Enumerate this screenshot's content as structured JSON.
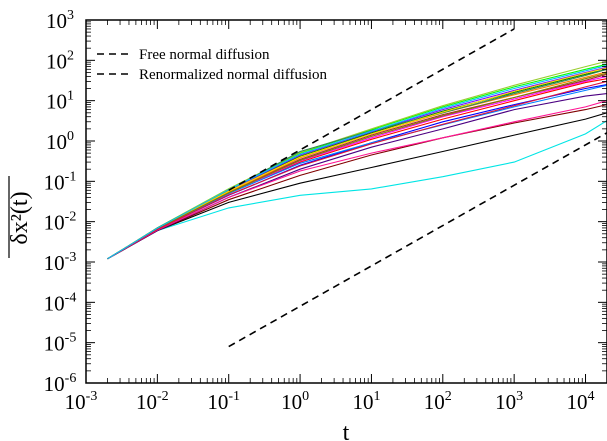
{
  "chart_data": {
    "type": "line",
    "xscale": "log",
    "yscale": "log",
    "xlim": [
      0.001,
      20000
    ],
    "ylim": [
      1e-06,
      1000
    ],
    "xlabel": "t",
    "ylabel": "δx²(t)",
    "x_ticks": [
      {
        "base": "10",
        "exp": "-3",
        "value": 0.001
      },
      {
        "base": "10",
        "exp": "-2",
        "value": 0.01
      },
      {
        "base": "10",
        "exp": "-1",
        "value": 0.1
      },
      {
        "base": "10",
        "exp": "0",
        "value": 1
      },
      {
        "base": "10",
        "exp": "1",
        "value": 10
      },
      {
        "base": "10",
        "exp": "2",
        "value": 100
      },
      {
        "base": "10",
        "exp": "3",
        "value": 1000
      },
      {
        "base": "10",
        "exp": "4",
        "value": 10000
      }
    ],
    "y_ticks": [
      {
        "base": "10",
        "exp": "-6",
        "value": 1e-06
      },
      {
        "base": "10",
        "exp": "-5",
        "value": 1e-05
      },
      {
        "base": "10",
        "exp": "-4",
        "value": 0.0001
      },
      {
        "base": "10",
        "exp": "-3",
        "value": 0.001
      },
      {
        "base": "10",
        "exp": "-2",
        "value": 0.01
      },
      {
        "base": "10",
        "exp": "-1",
        "value": 0.1
      },
      {
        "base": "10",
        "exp": "0",
        "value": 1
      },
      {
        "base": "10",
        "exp": "1",
        "value": 10
      },
      {
        "base": "10",
        "exp": "2",
        "value": 100
      },
      {
        "base": "10",
        "exp": "3",
        "value": 1000
      }
    ],
    "legend_position": "top-left",
    "reference_lines": [
      {
        "name": "Free normal diffusion",
        "style": "dashed",
        "color": "#000000",
        "x": [
          0.1,
          1000
        ],
        "y": [
          0.06,
          600
        ]
      },
      {
        "name": "Renormalized normal diffusion",
        "style": "dashed",
        "color": "#000000",
        "x": [
          0.1,
          20000
        ],
        "y": [
          8e-06,
          1.6
        ]
      }
    ],
    "series_colors": [
      "#000000",
      "#ff0000",
      "#00ff00",
      "#0000ff",
      "#ff00ff",
      "#00cccc",
      "#ff8000",
      "#8000ff",
      "#008000",
      "#a52a2a",
      "#ff1493",
      "#4b0082",
      "#9acd32",
      "#0080ff",
      "#800000",
      "#ffd700",
      "#808000",
      "#2e8b57",
      "#dc143c",
      "#00bfff"
    ],
    "series": [
      {
        "color": "#00e5e5",
        "x": [
          0.002,
          0.01,
          0.1,
          1,
          10,
          100,
          1000,
          10000,
          20000
        ],
        "y": [
          0.0012,
          0.006,
          0.022,
          0.045,
          0.065,
          0.13,
          0.3,
          1.5,
          3.2
        ]
      },
      {
        "color": "#000000",
        "x": [
          0.002,
          0.01,
          0.1,
          1,
          10,
          100,
          1000,
          10000,
          20000
        ],
        "y": [
          0.0012,
          0.006,
          0.03,
          0.09,
          0.22,
          0.55,
          1.4,
          3.5,
          5
        ]
      },
      {
        "color": "#800000",
        "x": [
          0.002,
          0.01,
          0.1,
          1,
          10,
          100,
          1000,
          10000,
          20000
        ],
        "y": [
          0.0012,
          0.006,
          0.035,
          0.14,
          0.45,
          1.2,
          2.8,
          6,
          8
        ]
      },
      {
        "color": "#4b0082",
        "x": [
          0.002,
          0.01,
          0.1,
          1,
          10,
          100,
          1000,
          10000,
          20000
        ],
        "y": [
          0.0012,
          0.006,
          0.04,
          0.2,
          0.7,
          2,
          6,
          13,
          15
        ]
      },
      {
        "color": "#0000ff",
        "x": [
          0.002,
          0.01,
          0.1,
          1,
          10,
          100,
          1000,
          10000,
          20000
        ],
        "y": [
          0.0012,
          0.0065,
          0.045,
          0.25,
          0.9,
          3,
          8,
          20,
          25
        ]
      },
      {
        "color": "#ff0000",
        "x": [
          0.002,
          0.01,
          0.1,
          1,
          10,
          100,
          1000,
          10000,
          20000
        ],
        "y": [
          0.0012,
          0.0065,
          0.05,
          0.3,
          1.1,
          3.5,
          10,
          28,
          35
        ]
      },
      {
        "color": "#ff00ff",
        "x": [
          0.002,
          0.01,
          0.1,
          1,
          10,
          100,
          1000,
          10000,
          20000
        ],
        "y": [
          0.0012,
          0.0065,
          0.05,
          0.32,
          1.2,
          4,
          11,
          30,
          40
        ]
      },
      {
        "color": "#a52a2a",
        "x": [
          0.002,
          0.01,
          0.1,
          1,
          10,
          100,
          1000,
          10000,
          20000
        ],
        "y": [
          0.0012,
          0.0065,
          0.055,
          0.35,
          1.4,
          4.5,
          12,
          32,
          45
        ]
      },
      {
        "color": "#ff8000",
        "x": [
          0.002,
          0.01,
          0.1,
          1,
          10,
          100,
          1000,
          10000,
          20000
        ],
        "y": [
          0.0012,
          0.0068,
          0.055,
          0.38,
          1.5,
          5,
          14,
          38,
          52
        ]
      },
      {
        "color": "#008000",
        "x": [
          0.002,
          0.01,
          0.1,
          1,
          10,
          100,
          1000,
          10000,
          20000
        ],
        "y": [
          0.0012,
          0.0068,
          0.06,
          0.42,
          1.6,
          5.5,
          16,
          45,
          60
        ]
      },
      {
        "color": "#8000ff",
        "x": [
          0.002,
          0.01,
          0.1,
          1,
          10,
          100,
          1000,
          10000,
          20000
        ],
        "y": [
          0.0012,
          0.0068,
          0.06,
          0.45,
          1.7,
          6,
          18,
          50,
          68
        ]
      },
      {
        "color": "#00ff00",
        "x": [
          0.002,
          0.01,
          0.1,
          1,
          10,
          100,
          1000,
          10000,
          20000
        ],
        "y": [
          0.0012,
          0.007,
          0.065,
          0.5,
          1.9,
          7,
          22,
          60,
          80
        ]
      },
      {
        "color": "#9acd32",
        "x": [
          0.002,
          0.01,
          0.1,
          1,
          10,
          100,
          1000,
          10000,
          20000
        ],
        "y": [
          0.0012,
          0.007,
          0.065,
          0.52,
          2,
          7.5,
          24,
          70,
          95
        ]
      },
      {
        "color": "#ff1493",
        "x": [
          0.002,
          0.01,
          0.1,
          1,
          10,
          100,
          1000,
          10000,
          20000
        ],
        "y": [
          0.0012,
          0.0062,
          0.04,
          0.18,
          0.5,
          1.2,
          3,
          7,
          10
        ]
      },
      {
        "color": "#2e8b57",
        "x": [
          0.002,
          0.01,
          0.1,
          1,
          10,
          100,
          1000,
          10000,
          20000
        ],
        "y": [
          0.0012,
          0.007,
          0.06,
          0.55,
          1.8,
          5,
          15,
          42,
          60
        ]
      },
      {
        "color": "#0080ff",
        "x": [
          0.002,
          0.01,
          0.1,
          1,
          10,
          100,
          1000,
          10000,
          20000
        ],
        "y": [
          0.0012,
          0.0066,
          0.05,
          0.28,
          0.9,
          2.5,
          7,
          18,
          24
        ]
      },
      {
        "color": "#ffd700",
        "x": [
          0.002,
          0.01,
          0.1,
          1,
          10,
          100,
          1000,
          10000,
          20000
        ],
        "y": [
          0.0012,
          0.0068,
          0.057,
          0.4,
          1.5,
          5.2,
          17,
          48,
          65
        ]
      },
      {
        "color": "#808000",
        "x": [
          0.002,
          0.01,
          0.1,
          1,
          10,
          100,
          1000,
          10000,
          20000
        ],
        "y": [
          0.0012,
          0.0067,
          0.052,
          0.33,
          1.3,
          4.2,
          12,
          35,
          48
        ]
      },
      {
        "color": "#dc143c",
        "x": [
          0.002,
          0.01,
          0.1,
          1,
          10,
          100,
          1000,
          10000,
          20000
        ],
        "y": [
          0.0012,
          0.0064,
          0.046,
          0.24,
          0.85,
          2.6,
          7.5,
          22,
          30
        ]
      },
      {
        "color": "#00bfff",
        "x": [
          0.002,
          0.01,
          0.1,
          1,
          10,
          100,
          1000,
          10000,
          20000
        ],
        "y": [
          0.0012,
          0.0069,
          0.062,
          0.47,
          1.75,
          6.5,
          20,
          55,
          75
        ]
      }
    ]
  }
}
